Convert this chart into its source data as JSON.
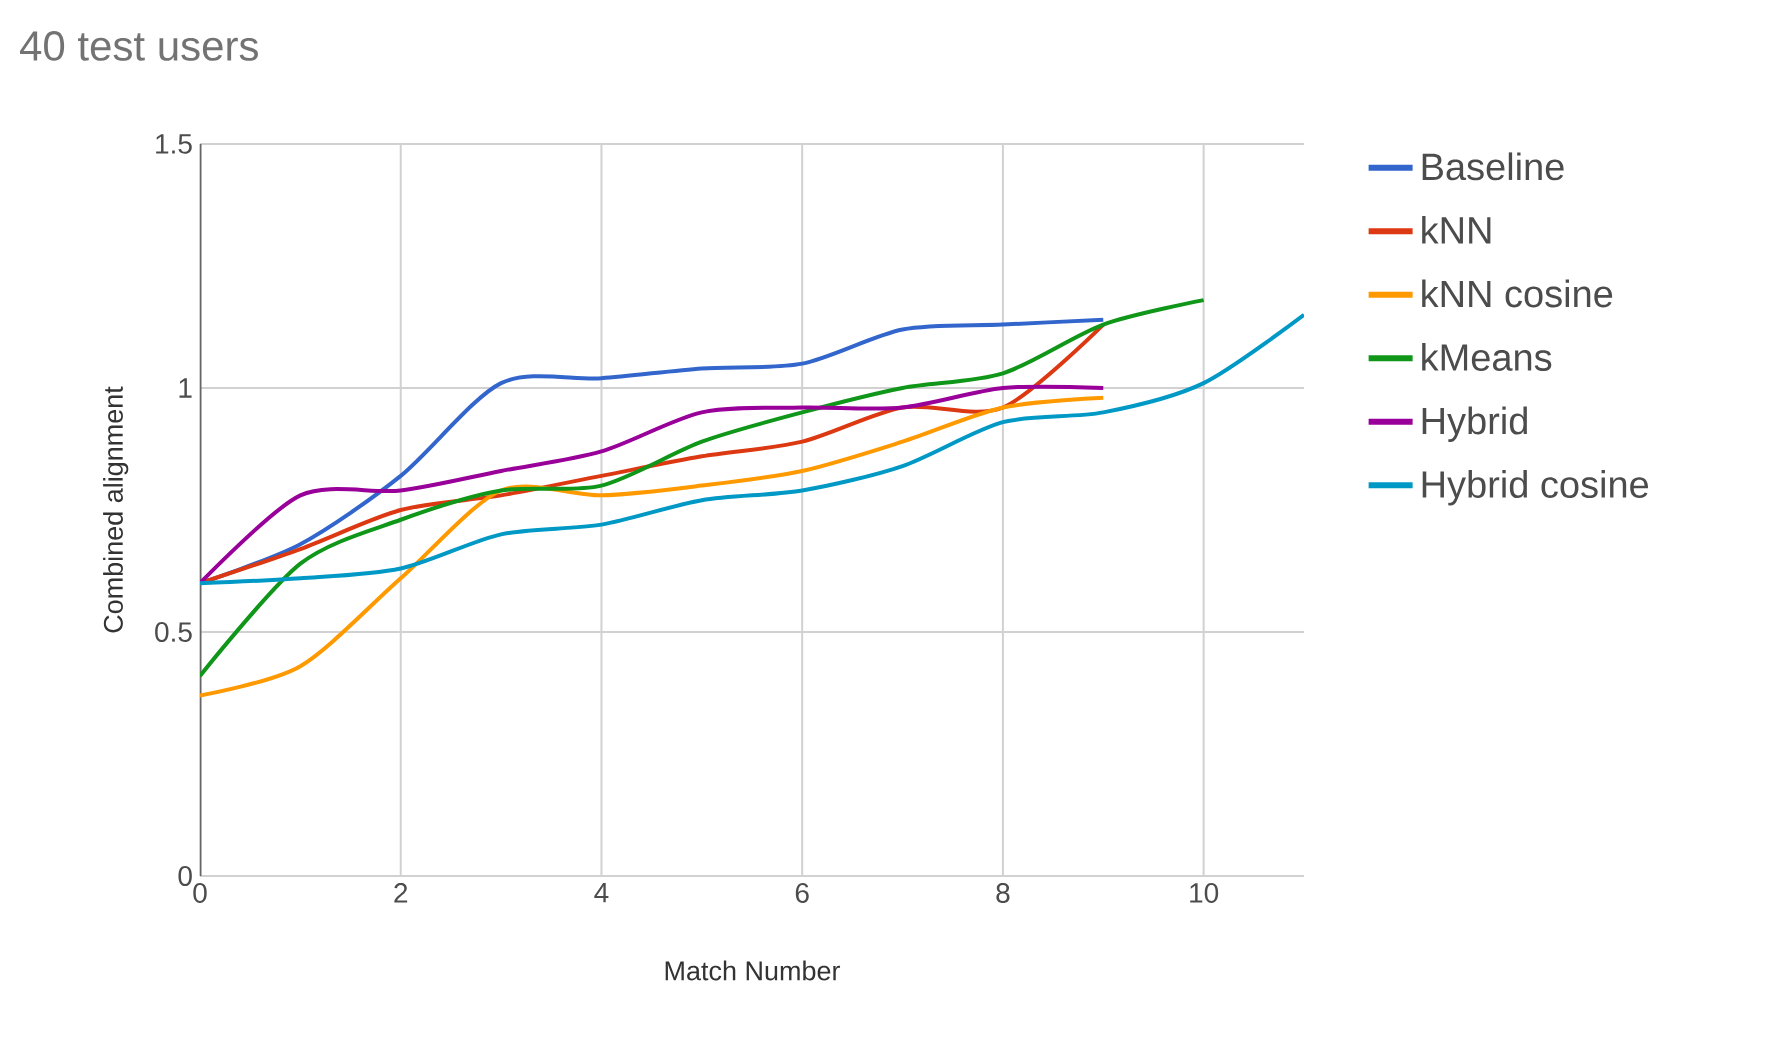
{
  "chart_data": {
    "type": "line",
    "title": "40 test users",
    "xlabel": "Match Number",
    "ylabel": "Combined alignment",
    "xlim": [
      0,
      11
    ],
    "xticks": [
      0,
      2,
      4,
      6,
      8,
      10
    ],
    "ylim": [
      0,
      1.5
    ],
    "yticks": [
      0,
      0.5,
      1,
      1.5
    ],
    "grid": true,
    "legend": "right",
    "marker": "none",
    "x": [
      0,
      1,
      2,
      3,
      4,
      5,
      6,
      7,
      8,
      9,
      10,
      11
    ],
    "series": [
      {
        "name": "Baseline",
        "color": "#3366cc",
        "values": [
          0.6,
          0.68,
          0.82,
          1.01,
          1.02,
          1.04,
          1.05,
          1.12,
          1.13,
          1.14,
          null,
          null
        ]
      },
      {
        "name": "kNN",
        "color": "#dc3912",
        "values": [
          0.6,
          0.67,
          0.75,
          0.78,
          0.82,
          0.86,
          0.89,
          0.96,
          0.96,
          1.13,
          null,
          null
        ]
      },
      {
        "name": "kNN cosine",
        "color": "#ff9900",
        "values": [
          0.37,
          0.43,
          0.61,
          0.79,
          0.78,
          0.8,
          0.83,
          0.89,
          0.96,
          0.98,
          null,
          null
        ]
      },
      {
        "name": "kMeans",
        "color": "#109618",
        "values": [
          0.41,
          0.64,
          0.73,
          0.79,
          0.8,
          0.89,
          0.95,
          1.0,
          1.03,
          1.13,
          1.18,
          null
        ]
      },
      {
        "name": "Hybrid",
        "color": "#990099",
        "values": [
          0.6,
          0.78,
          0.79,
          0.83,
          0.87,
          0.95,
          0.96,
          0.96,
          1.0,
          1.0,
          null,
          null
        ]
      },
      {
        "name": "Hybrid cosine",
        "color": "#0099c6",
        "values": [
          0.6,
          0.61,
          0.63,
          0.7,
          0.72,
          0.77,
          0.79,
          0.84,
          0.93,
          0.95,
          1.01,
          1.15
        ]
      }
    ]
  }
}
